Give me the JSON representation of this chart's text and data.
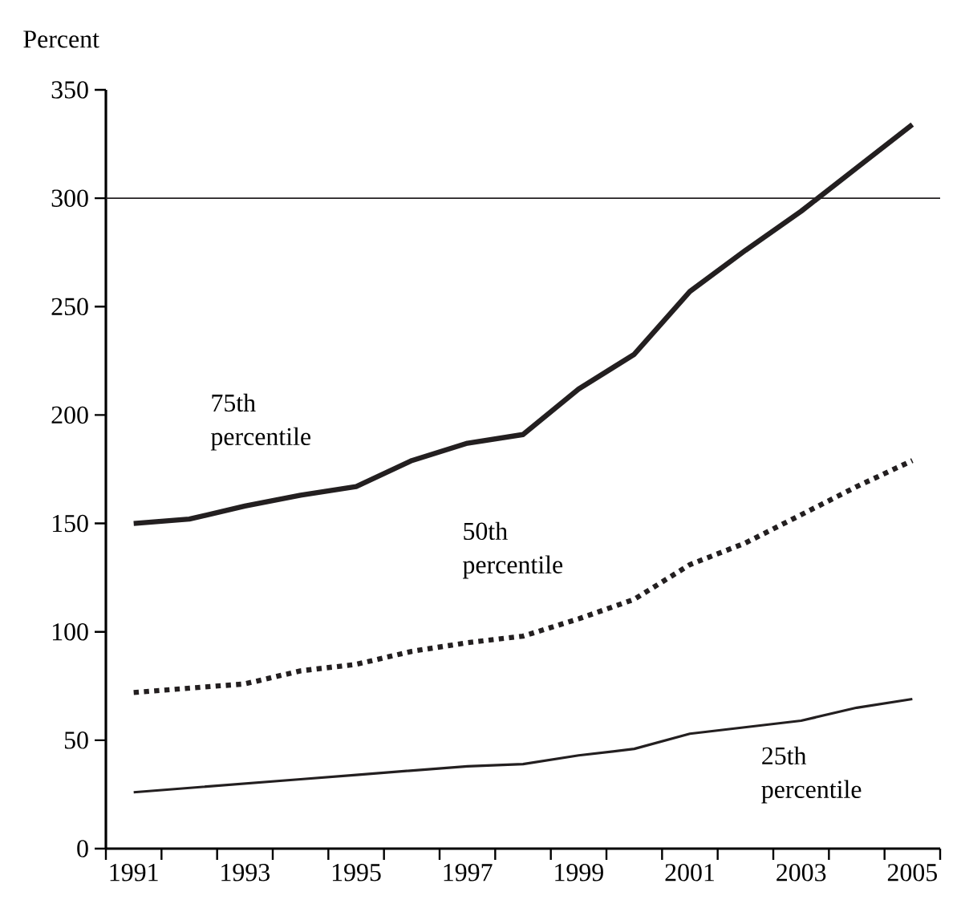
{
  "chart_data": {
    "type": "line",
    "ylabel": "Percent",
    "x": [
      1991,
      1992,
      1993,
      1994,
      1995,
      1996,
      1997,
      1998,
      1999,
      2000,
      2001,
      2002,
      2003,
      2004,
      2005
    ],
    "series": [
      {
        "name": "75th percentile",
        "color": "#231f20",
        "line_style": "solid",
        "values": [
          150,
          152,
          158,
          163,
          167,
          179,
          187,
          191,
          212,
          228,
          257,
          276,
          294,
          314,
          334
        ]
      },
      {
        "name": "50th percentile",
        "color": "#231f20",
        "line_style": "dotted",
        "values": [
          72,
          74,
          76,
          82,
          85,
          91,
          95,
          98,
          106,
          115,
          131,
          141,
          154,
          167,
          179
        ]
      },
      {
        "name": "25th percentile",
        "color": "#231f20",
        "line_style": "solid",
        "values": [
          26,
          28,
          30,
          32,
          34,
          36,
          38,
          39,
          43,
          46,
          53,
          56,
          59,
          65,
          69
        ]
      }
    ],
    "xlim": [
      1990.5,
      2005.5
    ],
    "xticks": [
      {
        "value": 1990.5,
        "label": null
      },
      {
        "value": 1991,
        "label": "1991"
      },
      {
        "value": 1991.5,
        "label": null
      },
      {
        "value": 1992.5,
        "label": null
      },
      {
        "value": 1993,
        "label": "1993"
      },
      {
        "value": 1993.5,
        "label": null
      },
      {
        "value": 1994.5,
        "label": null
      },
      {
        "value": 1995,
        "label": "1995"
      },
      {
        "value": 1995.5,
        "label": null
      },
      {
        "value": 1996.5,
        "label": null
      },
      {
        "value": 1997,
        "label": "1997"
      },
      {
        "value": 1997.5,
        "label": null
      },
      {
        "value": 1998.5,
        "label": null
      },
      {
        "value": 1999,
        "label": "1999"
      },
      {
        "value": 1999.5,
        "label": null
      },
      {
        "value": 2000.5,
        "label": null
      },
      {
        "value": 2001,
        "label": "2001"
      },
      {
        "value": 2001.5,
        "label": null
      },
      {
        "value": 2002.5,
        "label": null
      },
      {
        "value": 2003,
        "label": "2003"
      },
      {
        "value": 2003.5,
        "label": null
      },
      {
        "value": 2004.5,
        "label": null
      },
      {
        "value": 2005,
        "label": "2005"
      },
      {
        "value": 2005.5,
        "label": null
      }
    ],
    "ylim": [
      0,
      350
    ],
    "yticks": [
      0,
      50,
      100,
      150,
      200,
      250,
      300,
      350
    ],
    "ref_lines": [
      {
        "axis": "y",
        "value": 300,
        "color": "#231f20"
      }
    ],
    "grid": false,
    "marker": "none"
  }
}
